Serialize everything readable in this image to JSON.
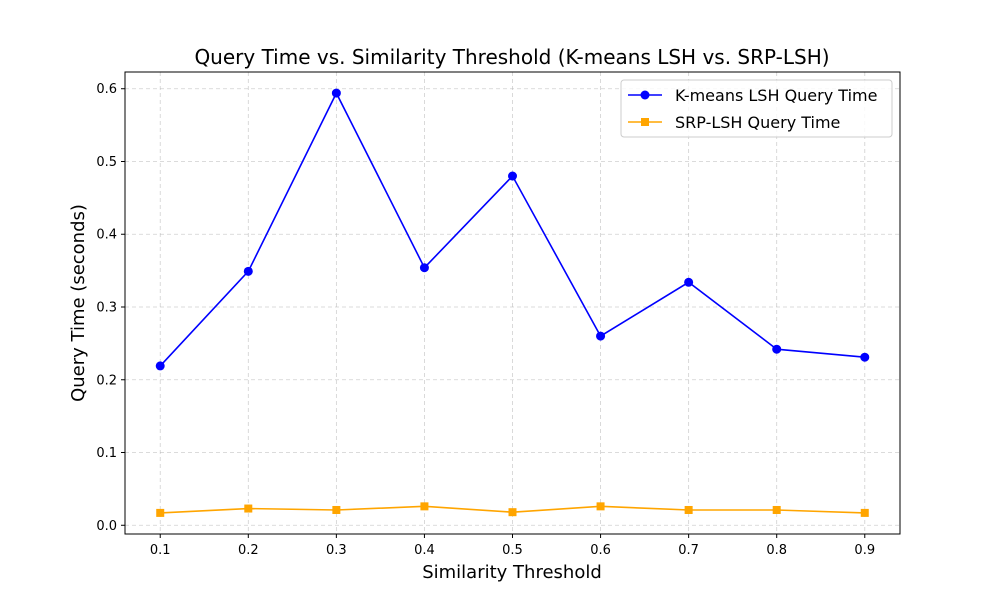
{
  "chart_data": {
    "type": "line",
    "title": "Query Time vs. Similarity Threshold (K-means LSH vs. SRP-LSH)",
    "xlabel": "Similarity Threshold",
    "ylabel": "Query Time (seconds)",
    "x": [
      0.1,
      0.2,
      0.3,
      0.4,
      0.5,
      0.6,
      0.7,
      0.8,
      0.9
    ],
    "xticks": [
      "0.1",
      "0.2",
      "0.3",
      "0.4",
      "0.5",
      "0.6",
      "0.7",
      "0.8",
      "0.9"
    ],
    "yticks": [
      "0.0",
      "0.1",
      "0.2",
      "0.3",
      "0.4",
      "0.5",
      "0.6"
    ],
    "xlim": [
      0.06,
      0.94
    ],
    "ylim": [
      -0.012,
      0.623
    ],
    "grid": true,
    "legend_position": "top-right",
    "series": [
      {
        "name": "K-means LSH Query Time",
        "color": "#0000ff",
        "marker": "circle",
        "values": [
          0.219,
          0.349,
          0.594,
          0.354,
          0.48,
          0.26,
          0.334,
          0.242,
          0.231
        ]
      },
      {
        "name": "SRP-LSH Query Time",
        "color": "#ffa500",
        "marker": "square",
        "values": [
          0.017,
          0.023,
          0.021,
          0.026,
          0.018,
          0.026,
          0.021,
          0.021,
          0.017
        ]
      }
    ]
  }
}
